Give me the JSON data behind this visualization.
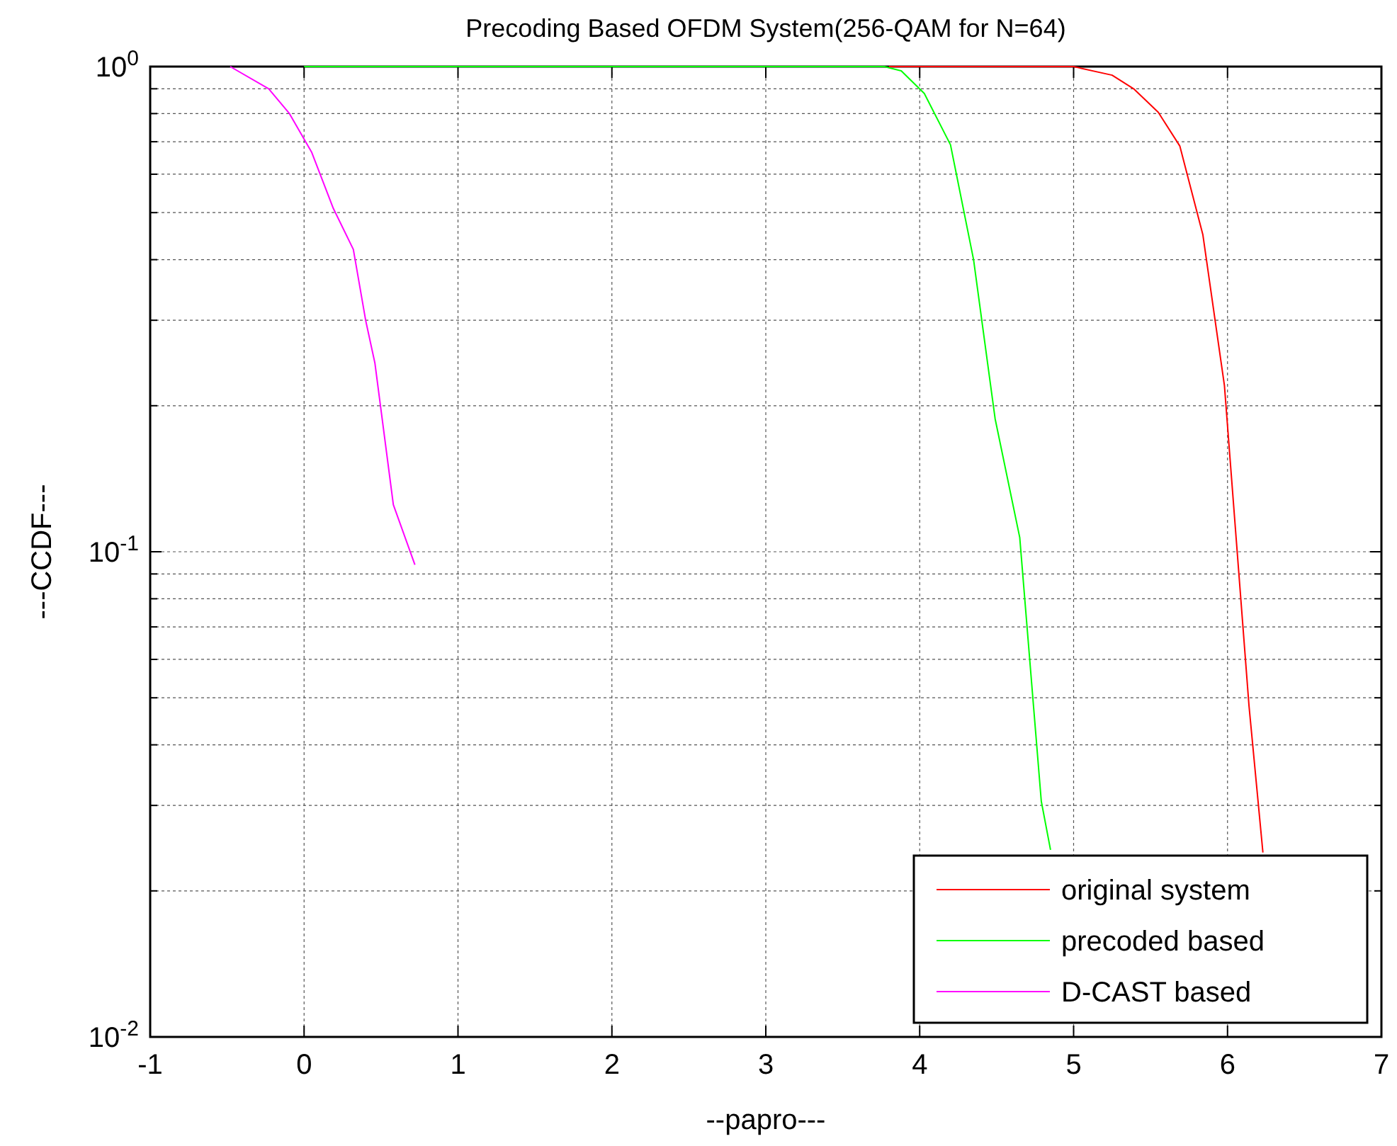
{
  "chart_data": {
    "type": "line",
    "title": "Precoding Based OFDM System(256-QAM for N=64)",
    "xlabel": "--papro---",
    "ylabel": "---CCDF---",
    "xlim": [
      -1,
      7
    ],
    "xticks": [
      -1,
      0,
      1,
      2,
      3,
      4,
      5,
      6,
      7
    ],
    "ylim": [
      0.01,
      1
    ],
    "yticks": [
      {
        "value": 0.01,
        "label": "10$^{-2}$"
      },
      {
        "value": 0.1,
        "label": "10$^{-1}$"
      },
      {
        "value": 1,
        "label": "10$^{0}$"
      }
    ],
    "log": "y",
    "grid": true,
    "legend": "bottom right",
    "line_style": "solid",
    "series": [
      {
        "name": "original system",
        "color": "#ff0000",
        "x": [
          3.8,
          5.0,
          5.25,
          5.39,
          5.55,
          5.69,
          5.84,
          5.98,
          6.14,
          6.23
        ],
        "values": [
          1,
          1,
          0.96,
          0.9,
          0.805,
          0.686,
          0.45,
          0.22,
          0.048,
          0.024
        ]
      },
      {
        "name": "precoded based",
        "color": "#00ff00",
        "x": [
          0,
          3.77,
          3.88,
          4.03,
          4.2,
          4.35,
          4.49,
          4.65,
          4.79,
          4.85
        ],
        "values": [
          1,
          1,
          0.98,
          0.88,
          0.69,
          0.4,
          0.188,
          0.107,
          0.0306,
          0.0243
        ]
      },
      {
        "name": "D-CAST based",
        "color": "#ff00ff",
        "x": [
          -0.48,
          -0.23,
          -0.095,
          0.05,
          0.19,
          0.32,
          0.4,
          0.46,
          0.58,
          0.72
        ],
        "values": [
          1,
          0.9,
          0.8,
          0.665,
          0.51,
          0.42,
          0.3,
          0.245,
          0.125,
          0.094
        ]
      }
    ]
  }
}
